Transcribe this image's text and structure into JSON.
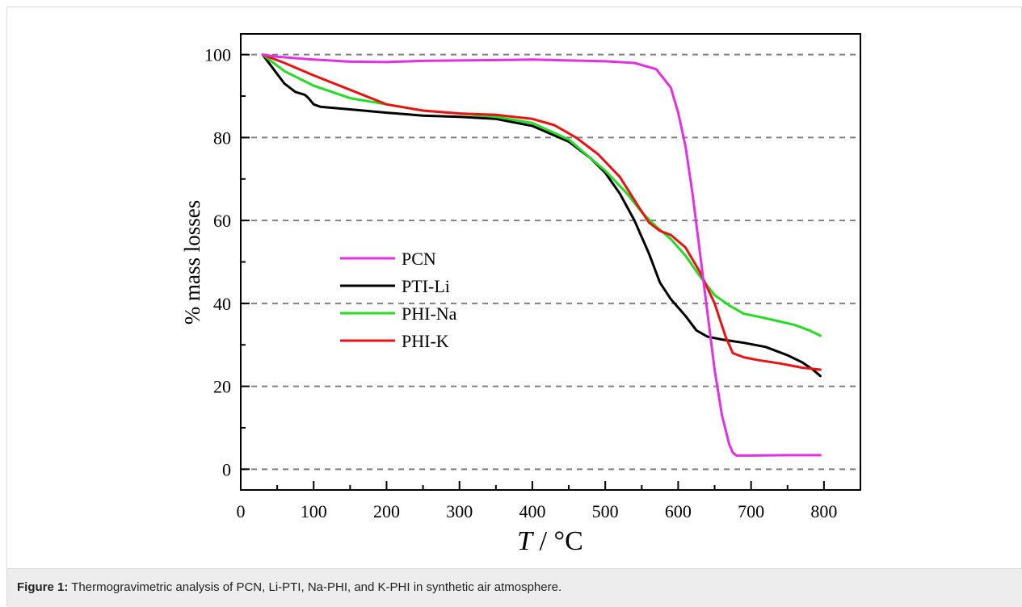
{
  "figure": {
    "caption_label": "Figure 1:",
    "caption_text": " Thermogravimetric analysis of PCN, Li-PTI, Na-PHI, and K-PHI in synthetic air atmosphere."
  },
  "chart_data": {
    "type": "line",
    "xlabel_italic": "T",
    "xlabel_rest": " / °C",
    "ylabel": "% mass losses",
    "xlim": [
      0,
      850
    ],
    "ylim": [
      -5,
      105
    ],
    "xticks": [
      0,
      100,
      200,
      300,
      400,
      500,
      600,
      700,
      800
    ],
    "yticks": [
      0,
      20,
      40,
      60,
      80,
      100
    ],
    "grid": "horizontal dashed",
    "legend_position": "center-left",
    "series": [
      {
        "name": "PCN",
        "color": "#e52ee5",
        "points": [
          [
            30,
            100
          ],
          [
            50,
            99.5
          ],
          [
            100,
            98.8
          ],
          [
            150,
            98.3
          ],
          [
            200,
            98.2
          ],
          [
            250,
            98.5
          ],
          [
            300,
            98.6
          ],
          [
            350,
            98.7
          ],
          [
            400,
            98.8
          ],
          [
            450,
            98.6
          ],
          [
            500,
            98.4
          ],
          [
            540,
            98.0
          ],
          [
            570,
            96.5
          ],
          [
            590,
            92.0
          ],
          [
            600,
            86.0
          ],
          [
            610,
            78.0
          ],
          [
            620,
            66.0
          ],
          [
            630,
            52.0
          ],
          [
            640,
            38.0
          ],
          [
            650,
            24.0
          ],
          [
            660,
            13.0
          ],
          [
            670,
            6.0
          ],
          [
            675,
            4.0
          ],
          [
            680,
            3.3
          ],
          [
            700,
            3.3
          ],
          [
            750,
            3.4
          ],
          [
            795,
            3.4
          ]
        ]
      },
      {
        "name": "PTI-Li",
        "color": "#000000",
        "points": [
          [
            30,
            100
          ],
          [
            45,
            96.5
          ],
          [
            60,
            93.0
          ],
          [
            75,
            91.0
          ],
          [
            88,
            90.3
          ],
          [
            93,
            89.5
          ],
          [
            100,
            88.0
          ],
          [
            110,
            87.4
          ],
          [
            150,
            86.8
          ],
          [
            200,
            86.0
          ],
          [
            250,
            85.3
          ],
          [
            300,
            85.0
          ],
          [
            350,
            84.5
          ],
          [
            400,
            82.8
          ],
          [
            450,
            79.0
          ],
          [
            480,
            75.0
          ],
          [
            500,
            71.5
          ],
          [
            520,
            66.5
          ],
          [
            540,
            60.0
          ],
          [
            560,
            52.0
          ],
          [
            575,
            45.0
          ],
          [
            590,
            41.0
          ],
          [
            610,
            37.0
          ],
          [
            625,
            33.5
          ],
          [
            640,
            32.0
          ],
          [
            660,
            31.3
          ],
          [
            690,
            30.5
          ],
          [
            720,
            29.5
          ],
          [
            750,
            27.5
          ],
          [
            770,
            25.8
          ],
          [
            785,
            24.0
          ],
          [
            795,
            22.5
          ]
        ]
      },
      {
        "name": "PHI-Na",
        "color": "#22dd22",
        "points": [
          [
            30,
            100
          ],
          [
            60,
            96.0
          ],
          [
            100,
            92.5
          ],
          [
            150,
            89.5
          ],
          [
            200,
            88.0
          ],
          [
            250,
            86.5
          ],
          [
            300,
            85.8
          ],
          [
            350,
            85.0
          ],
          [
            400,
            83.5
          ],
          [
            450,
            79.5
          ],
          [
            500,
            72.0
          ],
          [
            530,
            66.5
          ],
          [
            550,
            62.0
          ],
          [
            570,
            58.5
          ],
          [
            590,
            55.5
          ],
          [
            610,
            51.5
          ],
          [
            630,
            46.5
          ],
          [
            650,
            42.0
          ],
          [
            670,
            39.5
          ],
          [
            690,
            37.5
          ],
          [
            710,
            36.8
          ],
          [
            730,
            36.0
          ],
          [
            760,
            34.8
          ],
          [
            780,
            33.5
          ],
          [
            795,
            32.2
          ]
        ]
      },
      {
        "name": "PHI-K",
        "color": "#ee1111",
        "points": [
          [
            30,
            100
          ],
          [
            60,
            98.0
          ],
          [
            100,
            95.0
          ],
          [
            150,
            91.5
          ],
          [
            200,
            88.0
          ],
          [
            250,
            86.5
          ],
          [
            300,
            85.8
          ],
          [
            350,
            85.5
          ],
          [
            400,
            84.5
          ],
          [
            430,
            83.0
          ],
          [
            460,
            80.0
          ],
          [
            490,
            76.0
          ],
          [
            520,
            70.5
          ],
          [
            545,
            63.5
          ],
          [
            560,
            59.5
          ],
          [
            575,
            57.5
          ],
          [
            590,
            56.5
          ],
          [
            610,
            53.5
          ],
          [
            630,
            47.5
          ],
          [
            650,
            40.0
          ],
          [
            665,
            32.0
          ],
          [
            675,
            28.0
          ],
          [
            690,
            27.0
          ],
          [
            710,
            26.3
          ],
          [
            740,
            25.5
          ],
          [
            770,
            24.5
          ],
          [
            795,
            24.0
          ]
        ]
      }
    ]
  }
}
